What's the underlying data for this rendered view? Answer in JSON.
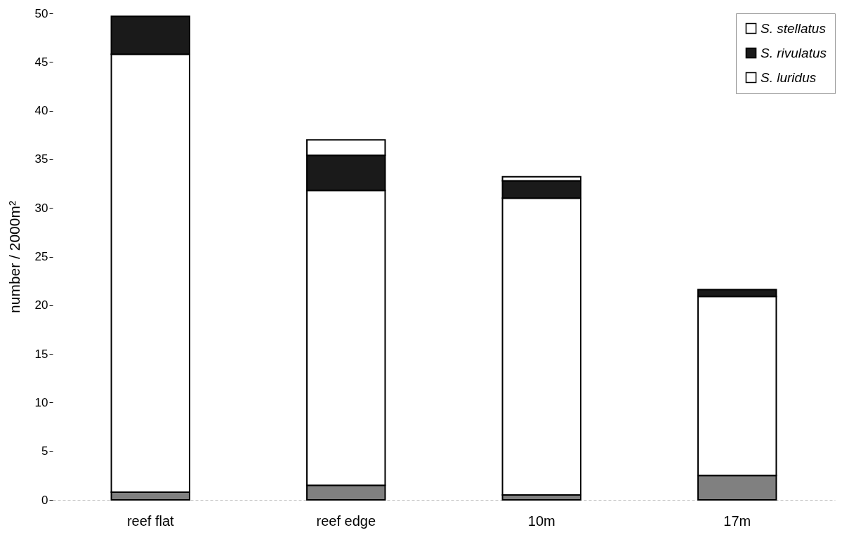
{
  "chart_data": {
    "type": "bar",
    "stacked": true,
    "ylabel": "number / 2000m²",
    "categories": [
      "reef flat",
      "reef edge",
      "10m",
      "17m"
    ],
    "series": [
      {
        "color": "#808080",
        "values": [
          0.8,
          1.5,
          0.5,
          2.5
        ]
      },
      {
        "name": "S. luridus",
        "color": "#ffffff",
        "values": [
          45.0,
          30.3,
          30.5,
          18.4
        ]
      },
      {
        "name": "S. rivulatus",
        "color": "#1a1a1a",
        "values": [
          3.9,
          3.6,
          1.8,
          0.7
        ]
      },
      {
        "name": "S. stellatus",
        "color": "#ffffff",
        "values": [
          0,
          1.6,
          0.4,
          0
        ]
      }
    ],
    "ylim": [
      0,
      50
    ],
    "yticks": [
      0,
      5,
      10,
      15,
      20,
      25,
      30,
      35,
      40,
      45,
      50
    ],
    "grid": false,
    "legend": "top right"
  }
}
